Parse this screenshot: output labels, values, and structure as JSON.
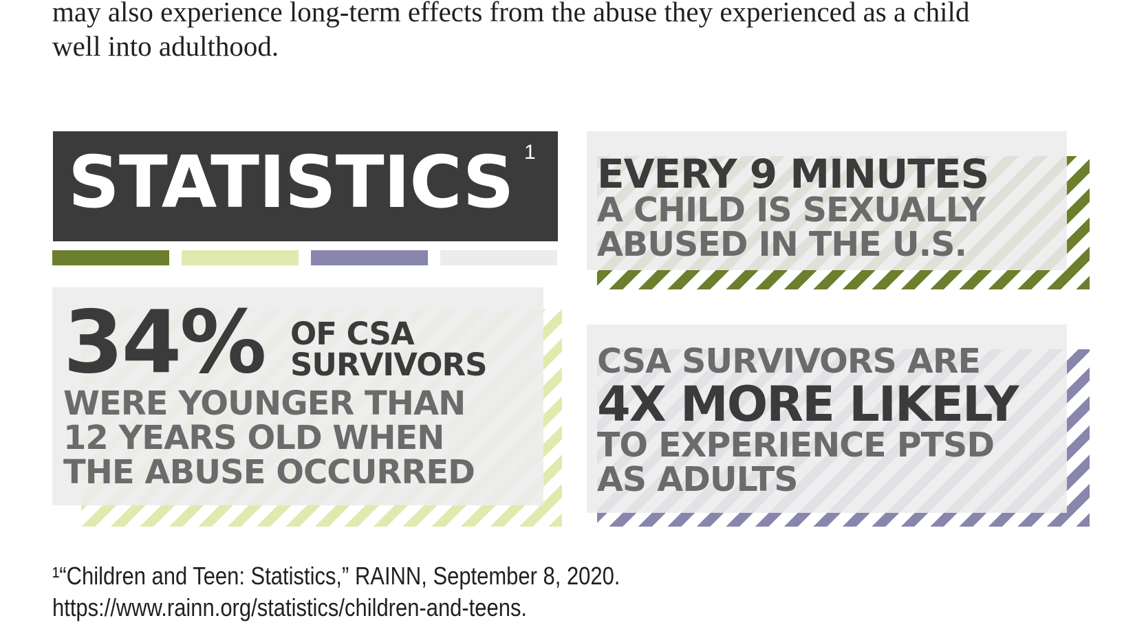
{
  "intro_text": {
    "line1": "may also experience long-term effects from the abuse they experienced as a child",
    "line2": "well into adulthood."
  },
  "heading": {
    "title": "STATISTICS",
    "footnote_marker": "1"
  },
  "colors": {
    "dark": "#3a3b3a",
    "green": "#6b7f2c",
    "light_green": "#e0eaaf",
    "purple": "#8886ad",
    "light_gray": "#ececec",
    "text_gray": "#6b6b6b"
  },
  "swatches": [
    "green",
    "light_green",
    "purple",
    "light_gray"
  ],
  "stats": {
    "every_nine_minutes": {
      "line1": "EVERY 9 MINUTES",
      "line2": "A CHILD IS SEXUALLY",
      "line3": "ABUSED IN THE U.S."
    },
    "thirty_four_percent": {
      "big": "34%",
      "side1": "OF CSA",
      "side2": "SURVIVORS",
      "line1": "WERE YOUNGER THAN",
      "line2": "12 YEARS OLD WHEN",
      "line3": "THE ABUSE OCCURRED"
    },
    "four_x": {
      "line1": "CSA SURVIVORS ARE",
      "line2": "4X MORE LIKELY",
      "line3": "TO EXPERIENCE PTSD",
      "line4": "AS ADULTS"
    }
  },
  "footnote": {
    "line1": "¹“Children and Teen: Statistics,” RAINN, September 8, 2020.",
    "line2": "https://www.rainn.org/statistics/children-and-teens."
  }
}
